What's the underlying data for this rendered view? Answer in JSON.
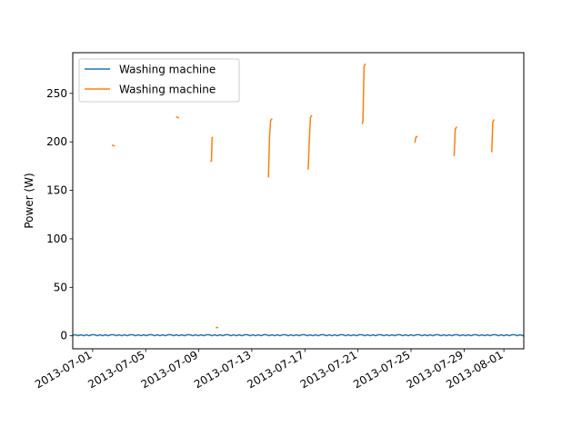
{
  "chart_data": {
    "type": "line",
    "title": "",
    "xlabel": "",
    "ylabel": "Power (W)",
    "x_range": [
      "2013-06-29T12:00",
      "2013-08-02T12:00"
    ],
    "ylim": [
      -13.4,
      292
    ],
    "grid": false,
    "legend": "top-left",
    "x_ticks": [
      "2013-07-01",
      "2013-07-05",
      "2013-07-09",
      "2013-07-13",
      "2013-07-17",
      "2013-07-21",
      "2013-07-25",
      "2013-07-29",
      "2013-08-01"
    ],
    "y_ticks": [
      0,
      50,
      100,
      150,
      200,
      250
    ],
    "series": [
      {
        "name": "Washing machine",
        "color": "#1f77b4",
        "baseline": {
          "start": "2013-06-29T12:00",
          "end": "2013-08-02T12:00",
          "value": 0.6
        },
        "segments": []
      },
      {
        "name": "Washing machine",
        "color": "#ff7f0e",
        "segments": [
          [
            [
              "2013-07-02T12:00",
              196.5
            ],
            [
              "2013-07-02T15:00",
              196
            ]
          ],
          [
            [
              "2013-07-07T08:00",
              225.5
            ],
            [
              "2013-07-07T11:00",
              225
            ]
          ],
          [
            [
              "2013-07-09T22:00",
              180
            ],
            [
              "2013-07-09T23:00",
              181
            ],
            [
              "2013-07-10T00:00",
              204
            ],
            [
              "2013-07-10T01:00",
              204.5
            ]
          ],
          [
            [
              "2013-07-10T08:00",
              8.5
            ],
            [
              "2013-07-10T10:00",
              8.5
            ]
          ],
          [
            [
              "2013-07-14T06:00",
              164
            ],
            [
              "2013-07-14T08:00",
              205
            ],
            [
              "2013-07-14T10:00",
              222
            ],
            [
              "2013-07-14T12:00",
              223.5
            ]
          ],
          [
            [
              "2013-07-17T06:00",
              172
            ],
            [
              "2013-07-17T08:00",
              202
            ],
            [
              "2013-07-17T10:00",
              225
            ],
            [
              "2013-07-17T12:00",
              227
            ]
          ],
          [
            [
              "2013-07-21T08:00",
              219
            ],
            [
              "2013-07-21T09:00",
              222
            ],
            [
              "2013-07-21T11:00",
              278
            ],
            [
              "2013-07-21T13:00",
              280
            ]
          ],
          [
            [
              "2013-07-25T07:00",
              200
            ],
            [
              "2013-07-25T09:00",
              205
            ],
            [
              "2013-07-25T11:00",
              205.5
            ]
          ],
          [
            [
              "2013-07-28T06:00",
              186
            ],
            [
              "2013-07-28T08:00",
              213
            ],
            [
              "2013-07-28T10:00",
              215
            ]
          ],
          [
            [
              "2013-07-31T02:00",
              190
            ],
            [
              "2013-07-31T04:00",
              221
            ],
            [
              "2013-07-31T06:00",
              222.5
            ]
          ]
        ]
      }
    ]
  }
}
